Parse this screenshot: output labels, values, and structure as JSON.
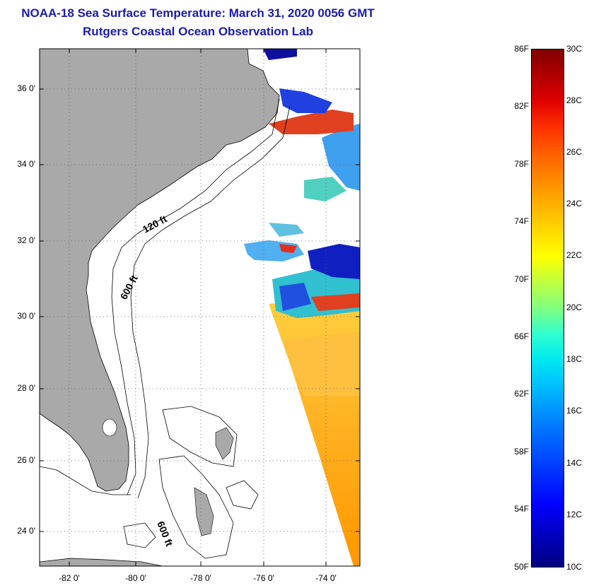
{
  "header": {
    "title": "NOAA-18 Sea Surface Temperature:  March 31, 2020 0056 GMT",
    "subtitle": "Rutgers Coastal Ocean Observation Lab"
  },
  "map": {
    "lat_labels": [
      "36 0'",
      "34 0'",
      "32 0'",
      "30 0'",
      "28 0'",
      "26 0'",
      "24 0'"
    ],
    "lon_labels": [
      "-82 0'",
      "-80 0'",
      "-78 0'",
      "-76 0'",
      "-74 0'"
    ],
    "contour_labels": [
      "120 ft",
      "600 ft",
      "600 ft"
    ],
    "colors": {
      "land": "#a9a9a9",
      "ocean": "#ffffff",
      "cold": "#1010d0",
      "warm": "#ffb000",
      "hot": "#e02000"
    }
  },
  "colorbar": {
    "fahrenheit": [
      "86F",
      "82F",
      "78F",
      "74F",
      "70F",
      "66F",
      "62F",
      "58F",
      "54F",
      "50F"
    ],
    "celsius": [
      "30C",
      "28C",
      "26C",
      "24C",
      "22C",
      "20C",
      "18C",
      "16C",
      "14C",
      "12C",
      "10C"
    ]
  }
}
